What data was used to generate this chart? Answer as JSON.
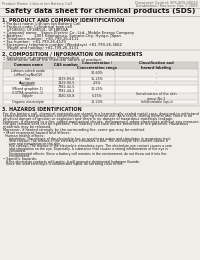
{
  "background_color": "#f0ede8",
  "header_left": "Product Name: Lithium Ion Battery Cell",
  "header_right_line1": "Document Control: SPS-SDS-00010",
  "header_right_line2": "Established / Revision: Dec.7.2009",
  "title": "Safety data sheet for chemical products (SDS)",
  "section1_title": "1. PRODUCT AND COMPANY IDENTIFICATION",
  "section1_lines": [
    "• Product name: Lithium Ion Battery Cell",
    "• Product code: Cylindrical type cell",
    "   UF18650J, UF18650L, UF18650A",
    "• Company name:   Sanyo Electric Co., Ltd., Mobile Energy Company",
    "• Address:         2001 Kamitokura, Sumoto-City, Hyogo, Japan",
    "• Telephone number:  +81-799-26-4111",
    "• Fax number:  +81-799-26-4129",
    "• Emergency telephone number (Weekdays) +81-799-26-3662",
    "   (Night and holiday) +81-799-26-3131"
  ],
  "section2_title": "2. COMPOSITION / INFORMATION ON INGREDIENTS",
  "section2_subtitle": "• Substance or preparation: Preparation",
  "section2_sub2": "• Information about the chemical nature of product:",
  "table_col_headers": [
    "Common name",
    "CAS number",
    "Concentration /\nConcentration range",
    "Classification and\nhazard labeling"
  ],
  "table_rows": [
    [
      "Lithium cobalt oxide\n(LiMnxCoyNizO2)",
      "-",
      "30-60%",
      "-"
    ],
    [
      "Iron",
      "7439-89-6",
      "15-25%",
      "-"
    ],
    [
      "Aluminum",
      "7429-90-5",
      "2-5%",
      "-"
    ],
    [
      "Graphite\n(Mixed graphite-1)\n(ULTRA graphite-1)",
      "7782-42-5\n7782-44-2",
      "10-25%",
      "-"
    ],
    [
      "Copper",
      "7440-50-8",
      "5-15%",
      "Sensitization of the skin\ngroup No.2"
    ],
    [
      "Organic electrolyte",
      "-",
      "10-20%",
      "Inflammable liquid"
    ]
  ],
  "section3_title": "3. HAZARDS IDENTIFICATION",
  "section3_text": [
    "For the battery cell, chemical materials are stored in a hermetically sealed metal case, designed to withstand",
    "temperatures and pressures-concentrations during normal use. As a result, during normal use, there is no",
    "physical danger of ignition or explosion and there is no danger of hazardous materials leakage.",
    "However, if exposed to a fire, added mechanical shocks, decomposed, when electrolyte without any measure,",
    "the gas release vent can be operated. The battery cell case will be breached at fire patterns. Hazardous",
    "materials may be released.",
    "Moreover, if heated strongly by the surrounding fire, some gas may be emitted."
  ],
  "section3_effects_title": "• Most important hazard and effects:",
  "section3_human": "Human health effects:",
  "section3_human_lines": [
    "    Inhalation: The release of the electrolyte has an anesthesia action and stimulates in respiratory tract.",
    "    Skin contact: The release of the electrolyte stimulates a skin. The electrolyte skin contact causes a",
    "    sore and stimulation on the skin.",
    "    Eye contact: The release of the electrolyte stimulates eyes. The electrolyte eye contact causes a sore",
    "    and stimulation on the eye. Especially, a substance that causes a strong inflammation of the eye is",
    "    contained.",
    "    Environmental effects: Since a battery cell remains in the environment, do not throw out it into the",
    "    environment."
  ],
  "section3_specific_title": "• Specific hazards:",
  "section3_specific_lines": [
    "  If the electrolyte contacts with water, it will generate detrimental hydrogen fluoride.",
    "  Since the used electrolyte is inflammable liquid, do not bring close to fire."
  ],
  "text_color": "#1a1a1a",
  "line_color": "#999999",
  "table_border_color": "#aaaaaa",
  "table_header_bg": "#d4d0cc",
  "font_size_tiny": 2.5,
  "font_size_body": 2.9,
  "font_size_section": 3.5,
  "font_size_main_title": 5.2
}
